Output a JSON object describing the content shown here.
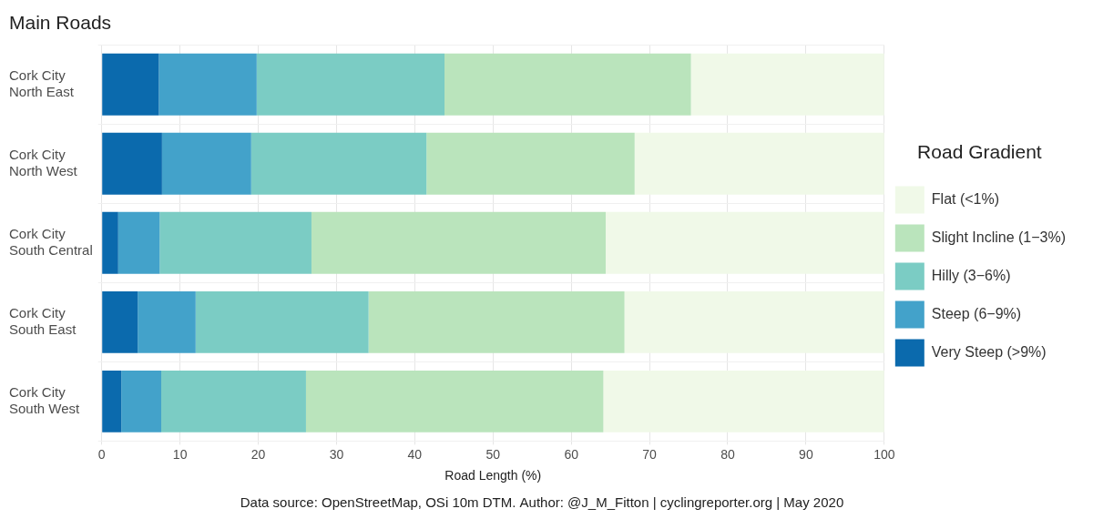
{
  "chart_data": {
    "type": "bar",
    "title": "Main Roads",
    "x_label": "Road Length (%)",
    "caption": "Data source: OpenStreetMap, OSi 10m DTM. Author: @J_M_Fitton | cyclingreporter.org | May 2020",
    "legend_title": "Road Gradient",
    "orientation": "horizontal",
    "stacked": true,
    "grid": true,
    "legend": "right",
    "categories": [
      "Cork City North East",
      "Cork City North West",
      "Cork City South Central",
      "Cork City South East",
      "Cork City South West"
    ],
    "xlim": [
      0,
      100
    ],
    "xticks": [
      0,
      10,
      20,
      30,
      40,
      50,
      60,
      70,
      80,
      90,
      100
    ],
    "series": [
      {
        "name": "Very Steep (>9%)",
        "color": "#0b6aad",
        "values": [
          7.3,
          7.7,
          2.1,
          4.6,
          2.5
        ]
      },
      {
        "name": "Steep (6−9%)",
        "color": "#43a2ca",
        "values": [
          12.5,
          11.4,
          5.3,
          7.4,
          5.1
        ]
      },
      {
        "name": "Hilly (3−6%)",
        "color": "#7bccc4",
        "values": [
          24.0,
          22.4,
          19.4,
          22.1,
          18.5
        ]
      },
      {
        "name": "Slight Incline (1−3%)",
        "color": "#bae4bc",
        "values": [
          31.5,
          26.6,
          37.6,
          32.7,
          38.0
        ]
      },
      {
        "name": "Flat (<1%)",
        "color": "#f0f9e8",
        "values": [
          24.7,
          31.9,
          35.6,
          33.2,
          35.9
        ]
      }
    ]
  }
}
